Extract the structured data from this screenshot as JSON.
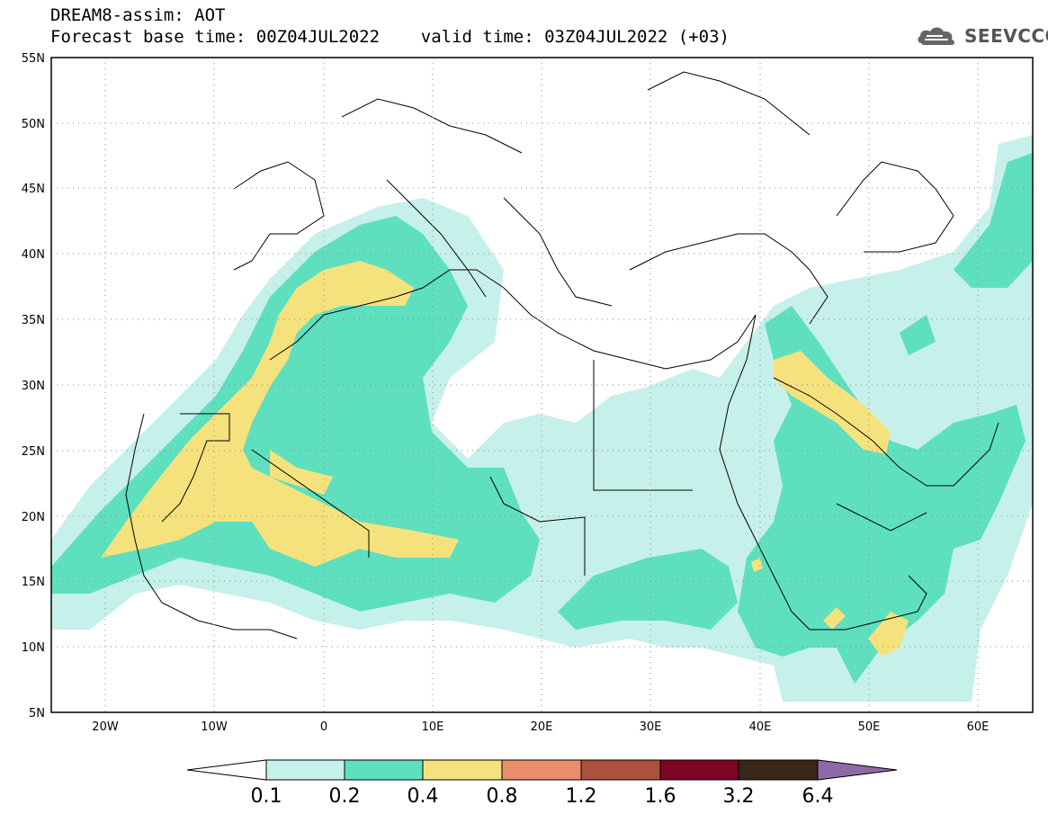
{
  "header": {
    "title": "DREAM8-assim: AOT",
    "subtitle": "Forecast base time: 00Z04JUL2022    valid time: 03Z04JUL2022 (+03)",
    "logo_text": "SEEVCCC"
  },
  "map": {
    "variable": "AOT",
    "lon_range": [
      -25,
      65
    ],
    "lat_range": [
      5,
      55
    ],
    "lat_ticks": [
      "55N",
      "50N",
      "45N",
      "40N",
      "35N",
      "30N",
      "25N",
      "20N",
      "15N",
      "10N",
      "5N"
    ],
    "lon_ticks": [
      "20W",
      "10W",
      "0",
      "10E",
      "20E",
      "30E",
      "40E",
      "50E",
      "60E"
    ],
    "grid": "dotted"
  },
  "colorbar": {
    "labels": [
      "0.1",
      "0.2",
      "0.4",
      "0.8",
      "1.2",
      "1.6",
      "3.2",
      "6.4"
    ],
    "colors": [
      "#ffffff",
      "#c6f0ea",
      "#5ee0bf",
      "#f6e27c",
      "#e98e6a",
      "#ad5040",
      "#7d0526",
      "#3a2616",
      "#8e6aa8"
    ]
  },
  "colors": {
    "aot_0_1": "#c6f0ea",
    "aot_0_2": "#5ee0bf",
    "aot_0_4": "#f6e27c",
    "coastline": "#000000"
  }
}
